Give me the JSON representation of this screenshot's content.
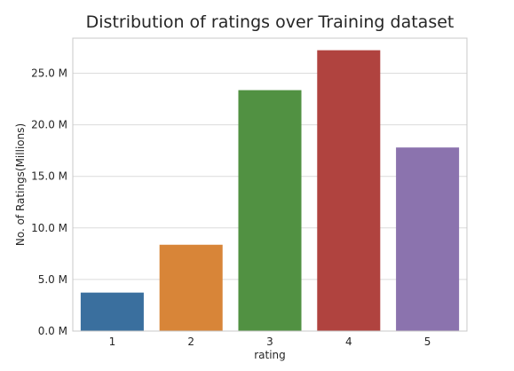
{
  "chart_data": {
    "type": "bar",
    "title": "Distribution of ratings over Training dataset",
    "xlabel": "rating",
    "ylabel": "No. of Ratings(Millions)",
    "categories": [
      "1",
      "2",
      "3",
      "4",
      "5"
    ],
    "values": [
      3.73,
      8.37,
      23.36,
      27.23,
      17.8
    ],
    "colors": [
      "#3a6f9e",
      "#d88538",
      "#519142",
      "#b0433f",
      "#8b73ae"
    ],
    "ylim": [
      0,
      28.4
    ],
    "yticks": [
      0,
      5,
      10,
      15,
      20,
      25
    ],
    "ytick_labels": [
      "0.0 M",
      "5.0 M",
      "10.0 M",
      "15.0 M",
      "20.0 M",
      "25.0 M"
    ],
    "grid": true,
    "legend": "none"
  }
}
